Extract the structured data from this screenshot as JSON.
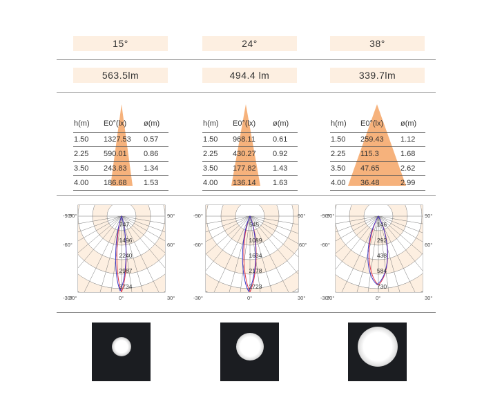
{
  "colors": {
    "accent_fill": "#fdefe1",
    "triangle": "#f6b27c",
    "curve_red": "#e0334a",
    "curve_blue": "#3a39c8",
    "grid": "#777777",
    "rule": "#8f8f8f"
  },
  "columns": [
    {
      "angle": "15°",
      "lumen": "563.5lm",
      "table": {
        "headers": [
          "h(m)",
          "E0°(lx)",
          "ø(m)"
        ],
        "rows": [
          [
            "1.50",
            "1327.53",
            "0.57"
          ],
          [
            "2.25",
            "590.01",
            "0.86"
          ],
          [
            "3.50",
            "243.83",
            "1.34"
          ],
          [
            "4.00",
            "186.68",
            "1.53"
          ]
        ]
      },
      "polar": {
        "values": [
          "747",
          "1496",
          "2240",
          "2987",
          "3734"
        ],
        "angle_labels": {
          "top_left": "-90°",
          "top_left_overlap": "90°",
          "top_right": "90°",
          "mid_left": "-60°",
          "mid_right": "60°",
          "bottom_left": "-30°",
          "bottom_left_overlap": "30°",
          "bottom_center": "0°",
          "bottom_right": "30°"
        }
      },
      "photo": {
        "label": "beam-spot-15"
      }
    },
    {
      "angle": "24°",
      "lumen": "494.4 lm",
      "table": {
        "headers": [
          "h(m)",
          "E0°(lx)",
          "ø(m)"
        ],
        "rows": [
          [
            "1.50",
            "968.11",
            "0.61"
          ],
          [
            "2.25",
            "430.27",
            "0.92"
          ],
          [
            "3.50",
            "177.82",
            "1.43"
          ],
          [
            "4.00",
            "136.14",
            "1.63"
          ]
        ]
      },
      "polar": {
        "values": [
          "545",
          "1089",
          "1634",
          "2178",
          "2723"
        ],
        "angle_labels": {
          "top_left": "-90°",
          "top_right": "90°",
          "mid_left": "-60°",
          "mid_right": "60°",
          "bottom_left": "-30°",
          "bottom_center": "0°",
          "bottom_right": "30°"
        }
      },
      "photo": {
        "label": "beam-spot-24"
      }
    },
    {
      "angle": "38°",
      "lumen": "339.7lm",
      "table": {
        "headers": [
          "h(m)",
          "E0°(lx)",
          "ø(m)"
        ],
        "rows": [
          [
            "1.50",
            "259.43",
            "1.12"
          ],
          [
            "2.25",
            "115.3",
            "1.68"
          ],
          [
            "3.50",
            "47.65",
            "2.62"
          ],
          [
            "4.00",
            "36.48",
            "2.99"
          ]
        ]
      },
      "polar": {
        "values": [
          "146",
          "292",
          "438",
          "584",
          "730"
        ],
        "angle_labels": {
          "top_left": "-90°",
          "top_left_overlap": "90°",
          "top_right": "90°",
          "mid_left": "-60°",
          "mid_right": "60°",
          "bottom_left": "-30°",
          "bottom_left_overlap": "30°",
          "bottom_center": "0°",
          "bottom_right": "30°"
        }
      },
      "photo": {
        "label": "beam-spot-38"
      }
    }
  ]
}
